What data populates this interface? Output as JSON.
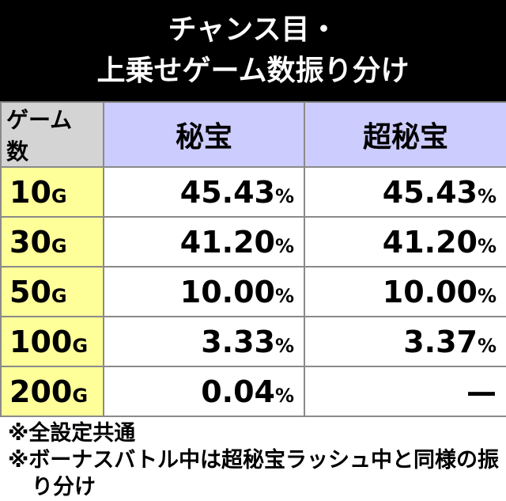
{
  "header": {
    "title_lines": [
      "チャンス目・",
      "上乗せゲーム数振り分け"
    ]
  },
  "table": {
    "columns": [
      "ゲーム数",
      "秘宝",
      "超秘宝"
    ],
    "rows": [
      [
        "10G",
        "45.43%",
        "45.43%"
      ],
      [
        "30G",
        "41.20%",
        "41.20%"
      ],
      [
        "50G",
        "10.00%",
        "10.00%"
      ],
      [
        "100G",
        "3.33%",
        "3.37%"
      ],
      [
        "200G",
        "0.04%",
        "—"
      ]
    ]
  },
  "notes": [
    "※全設定共通",
    "※ボーナスバトル中は超秘宝ラッシュ中と同様の振り分け"
  ]
}
